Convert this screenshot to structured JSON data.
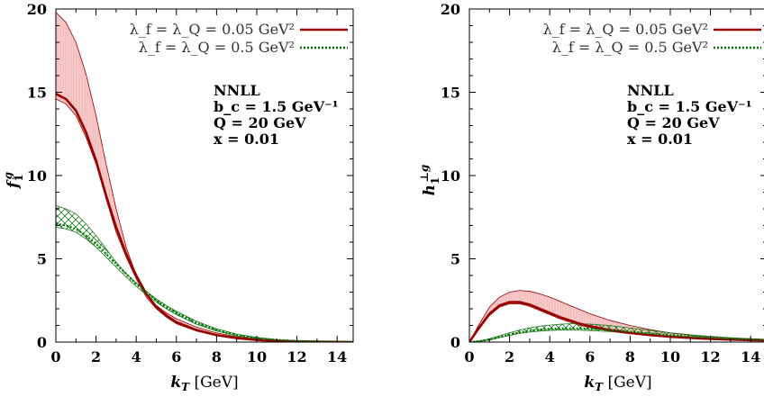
{
  "chart_data": [
    {
      "type": "area",
      "xlabel": "k_T [GeV]",
      "ylabel": "f_1^g",
      "xlim": [
        0,
        14.8
      ],
      "ylim": [
        0,
        20
      ],
      "x_ticks": [
        "0",
        "2",
        "4",
        "6",
        "8",
        "10",
        "12",
        "14"
      ],
      "y_ticks": [
        "0",
        "5",
        "10",
        "15",
        "20"
      ],
      "legend": {
        "position": "top-right",
        "entries": [
          {
            "label": "λ_f = λ_Q = 0.05 GeV²",
            "color": "#990000",
            "style": "solid"
          },
          {
            "label": "λ_f = λ_Q = 0.5 GeV²",
            "color": "#007700",
            "style": "dotted"
          }
        ]
      },
      "annotations": [
        "NNLL",
        "b_c = 1.5 GeV⁻¹",
        "Q = 20 GeV",
        "x = 0.01"
      ],
      "x": [
        0,
        0.5,
        1,
        1.5,
        2,
        2.5,
        3,
        3.5,
        4,
        4.5,
        5,
        5.5,
        6,
        7,
        8,
        9,
        10,
        11,
        12,
        13,
        14,
        14.8
      ],
      "series": [
        {
          "name": "λ_f = λ_Q = 0.05 GeV²",
          "color": "#990000",
          "central": [
            14.9,
            14.6,
            13.9,
            12.6,
            10.9,
            8.8,
            6.9,
            5.3,
            4.0,
            2.9,
            2.1,
            1.6,
            1.2,
            0.72,
            0.42,
            0.24,
            0.13,
            0.07,
            0.04,
            0.02,
            0.01,
            0.0
          ],
          "upper": [
            19.8,
            19.2,
            18.0,
            16.1,
            13.6,
            10.7,
            8.0,
            5.7,
            4.0,
            2.9,
            2.2,
            1.75,
            1.4,
            0.9,
            0.55,
            0.32,
            0.18,
            0.1,
            0.05,
            0.03,
            0.02,
            0.01
          ],
          "lower": [
            14.6,
            14.3,
            13.6,
            12.3,
            10.7,
            8.6,
            6.6,
            5.1,
            3.8,
            2.7,
            2.0,
            1.5,
            1.1,
            0.66,
            0.38,
            0.21,
            0.12,
            0.06,
            0.03,
            0.02,
            0.01,
            0.0
          ]
        },
        {
          "name": "λ_f = λ_Q = 0.5 GeV²",
          "color": "#007700",
          "central": [
            7.1,
            7.0,
            6.8,
            6.4,
            5.9,
            5.3,
            4.7,
            4.1,
            3.5,
            3.0,
            2.5,
            2.1,
            1.75,
            1.15,
            0.72,
            0.42,
            0.24,
            0.13,
            0.07,
            0.04,
            0.02,
            0.01
          ],
          "upper": [
            8.2,
            8.0,
            7.7,
            7.1,
            6.4,
            5.6,
            4.8,
            4.1,
            3.55,
            3.05,
            2.6,
            2.2,
            1.85,
            1.25,
            0.8,
            0.48,
            0.28,
            0.15,
            0.08,
            0.04,
            0.02,
            0.01
          ],
          "lower": [
            6.9,
            6.8,
            6.6,
            6.2,
            5.7,
            5.1,
            4.5,
            3.9,
            3.35,
            2.85,
            2.4,
            2.0,
            1.65,
            1.07,
            0.66,
            0.38,
            0.21,
            0.11,
            0.06,
            0.03,
            0.02,
            0.01
          ]
        }
      ]
    },
    {
      "type": "area",
      "xlabel": "k_T [GeV]",
      "ylabel": "h_1^⊥g",
      "xlim": [
        0,
        14.8
      ],
      "ylim": [
        0,
        20
      ],
      "x_ticks": [
        "0",
        "2",
        "4",
        "6",
        "8",
        "10",
        "12",
        "14"
      ],
      "y_ticks": [
        "0",
        "5",
        "10",
        "15",
        "20"
      ],
      "legend": {
        "position": "top-right",
        "entries": [
          {
            "label": "λ_f = λ_Q = 0.05 GeV²",
            "color": "#990000",
            "style": "solid"
          },
          {
            "label": "λ_f = λ_Q = 0.5 GeV²",
            "color": "#007700",
            "style": "dotted"
          }
        ]
      },
      "annotations": [
        "NNLL",
        "b_c = 1.5 GeV⁻¹",
        "Q = 20 GeV",
        "x = 0.01"
      ],
      "x": [
        0,
        0.5,
        1,
        1.5,
        2,
        2.5,
        3,
        3.5,
        4,
        4.5,
        5,
        5.5,
        6,
        7,
        8,
        9,
        10,
        11,
        12,
        13,
        14,
        14.8
      ],
      "series": [
        {
          "name": "λ_f = λ_Q = 0.05 GeV²",
          "color": "#990000",
          "central": [
            0,
            0.9,
            1.7,
            2.2,
            2.4,
            2.4,
            2.25,
            2.0,
            1.75,
            1.5,
            1.3,
            1.1,
            0.95,
            0.72,
            0.55,
            0.42,
            0.32,
            0.25,
            0.19,
            0.15,
            0.12,
            0.1
          ],
          "upper": [
            0,
            1.1,
            2.1,
            2.7,
            3.0,
            3.1,
            3.05,
            2.9,
            2.7,
            2.45,
            2.2,
            1.95,
            1.7,
            1.3,
            1.0,
            0.75,
            0.55,
            0.42,
            0.32,
            0.25,
            0.2,
            0.16
          ],
          "lower": [
            0,
            0.8,
            1.6,
            2.1,
            2.3,
            2.3,
            2.15,
            1.9,
            1.65,
            1.4,
            1.2,
            1.0,
            0.87,
            0.65,
            0.5,
            0.38,
            0.29,
            0.22,
            0.17,
            0.13,
            0.1,
            0.08
          ]
        },
        {
          "name": "λ_f = λ_Q = 0.5 GeV²",
          "color": "#007700",
          "central": [
            0,
            0.05,
            0.15,
            0.3,
            0.45,
            0.58,
            0.68,
            0.75,
            0.8,
            0.82,
            0.83,
            0.82,
            0.8,
            0.73,
            0.63,
            0.52,
            0.42,
            0.33,
            0.26,
            0.2,
            0.15,
            0.12
          ],
          "upper": [
            0,
            0.07,
            0.2,
            0.38,
            0.56,
            0.72,
            0.85,
            0.95,
            1.02,
            1.07,
            1.1,
            1.1,
            1.08,
            0.99,
            0.85,
            0.7,
            0.56,
            0.44,
            0.34,
            0.26,
            0.2,
            0.16
          ],
          "lower": [
            0,
            0.04,
            0.13,
            0.27,
            0.4,
            0.52,
            0.6,
            0.66,
            0.7,
            0.72,
            0.72,
            0.71,
            0.69,
            0.63,
            0.54,
            0.45,
            0.36,
            0.28,
            0.22,
            0.17,
            0.13,
            0.1
          ]
        }
      ]
    }
  ]
}
